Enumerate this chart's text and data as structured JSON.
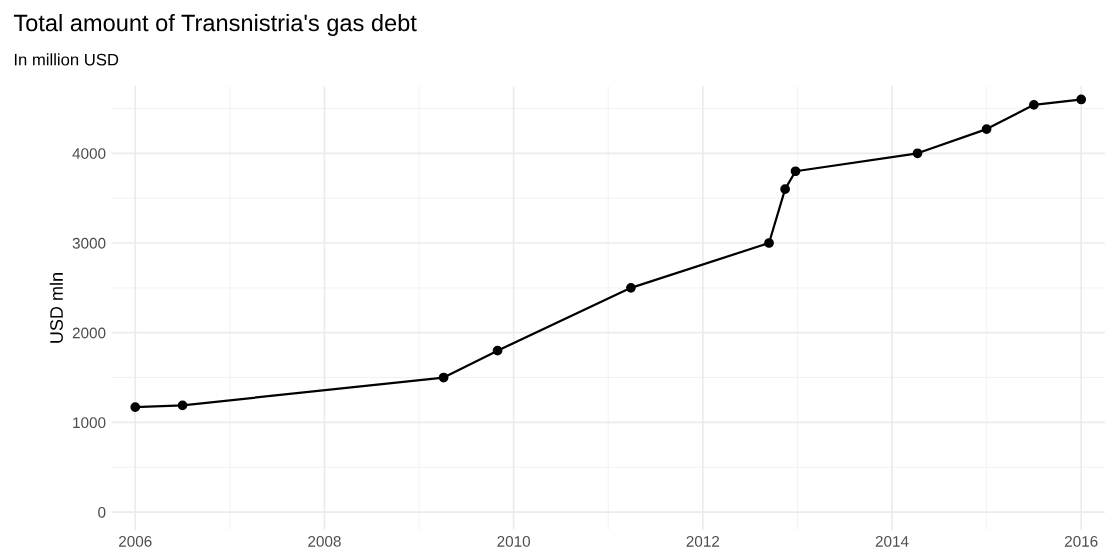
{
  "chart_data": {
    "type": "line",
    "title": "Total amount of Transnistria's gas debt",
    "subtitle": "In million USD",
    "ylabel": "USD mln",
    "x": [
      2006.0,
      2006.5,
      2009.26,
      2009.83,
      2011.24,
      2012.7,
      2012.87,
      2012.98,
      2014.27,
      2015.0,
      2015.5,
      2016.0
    ],
    "series": [
      {
        "color": "#000000",
        "values": [
          1170,
          1190,
          1500,
          1800,
          2500,
          3000,
          3600,
          3800,
          4000,
          4270,
          4540,
          4600
        ]
      }
    ],
    "xlim": [
      2005.75,
      2016.25
    ],
    "xticks": [
      2006,
      2008,
      2010,
      2012,
      2014,
      2016
    ],
    "ylim": [
      -200,
      4750
    ],
    "yticks": [
      0,
      1000,
      2000,
      3000,
      4000
    ],
    "grid": true,
    "marker": "circle",
    "line_style": "solid"
  }
}
